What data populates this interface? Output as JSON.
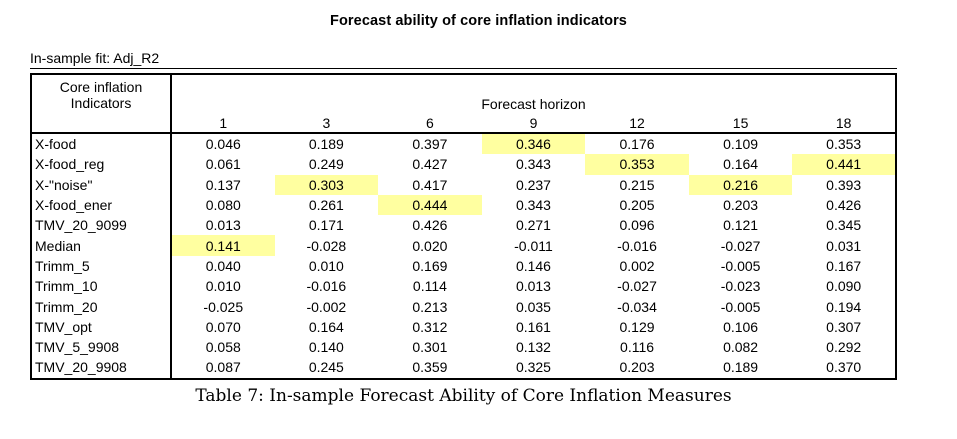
{
  "page": {
    "title": "Forecast ability of core inflation indicators",
    "subtitle": "In-sample fit: Adj_R2",
    "caption": "Table 7: In-sample Forecast Ability of Core Inflation Measures"
  },
  "table": {
    "indicator_header": [
      "Core inflation",
      "Indicators"
    ],
    "horizon_header": "Forecast horizon",
    "horizons": [
      "1",
      "3",
      "6",
      "9",
      "12",
      "15",
      "18"
    ],
    "rows": [
      {
        "label": "X-food",
        "values": [
          "0.046",
          "0.189",
          "0.397",
          "0.346",
          "0.176",
          "0.109",
          "0.353"
        ],
        "highlight": [
          3
        ]
      },
      {
        "label": "X-food_reg",
        "values": [
          "0.061",
          "0.249",
          "0.427",
          "0.343",
          "0.353",
          "0.164",
          "0.441"
        ],
        "highlight": [
          4,
          6
        ]
      },
      {
        "label": "X-\"noise\"",
        "values": [
          "0.137",
          "0.303",
          "0.417",
          "0.237",
          "0.215",
          "0.216",
          "0.393"
        ],
        "highlight": [
          1,
          5
        ]
      },
      {
        "label": "X-food_ener",
        "values": [
          "0.080",
          "0.261",
          "0.444",
          "0.343",
          "0.205",
          "0.203",
          "0.426"
        ],
        "highlight": [
          2
        ]
      },
      {
        "label": "TMV_20_9099",
        "values": [
          "0.013",
          "0.171",
          "0.426",
          "0.271",
          "0.096",
          "0.121",
          "0.345"
        ],
        "highlight": []
      },
      {
        "label": "Median",
        "values": [
          "0.141",
          "-0.028",
          "0.020",
          "-0.011",
          "-0.016",
          "-0.027",
          "0.031"
        ],
        "highlight": [
          0
        ]
      },
      {
        "label": "Trimm_5",
        "values": [
          "0.040",
          "0.010",
          "0.169",
          "0.146",
          "0.002",
          "-0.005",
          "0.167"
        ],
        "highlight": []
      },
      {
        "label": "Trimm_10",
        "values": [
          "0.010",
          "-0.016",
          "0.114",
          "0.013",
          "-0.027",
          "-0.023",
          "0.090"
        ],
        "highlight": []
      },
      {
        "label": "Trimm_20",
        "values": [
          "-0.025",
          "-0.002",
          "0.213",
          "0.035",
          "-0.034",
          "-0.005",
          "0.194"
        ],
        "highlight": []
      },
      {
        "label": "TMV_opt",
        "values": [
          "0.070",
          "0.164",
          "0.312",
          "0.161",
          "0.129",
          "0.106",
          "0.307"
        ],
        "highlight": []
      },
      {
        "label": "TMV_5_9908",
        "values": [
          "0.058",
          "0.140",
          "0.301",
          "0.132",
          "0.116",
          "0.082",
          "0.292"
        ],
        "highlight": []
      },
      {
        "label": "TMV_20_9908",
        "values": [
          "0.087",
          "0.245",
          "0.359",
          "0.325",
          "0.203",
          "0.189",
          "0.370"
        ],
        "highlight": []
      }
    ]
  },
  "colors": {
    "highlight": "#ffffa0",
    "border": "#000000",
    "text": "#000000",
    "background": "#ffffff"
  }
}
